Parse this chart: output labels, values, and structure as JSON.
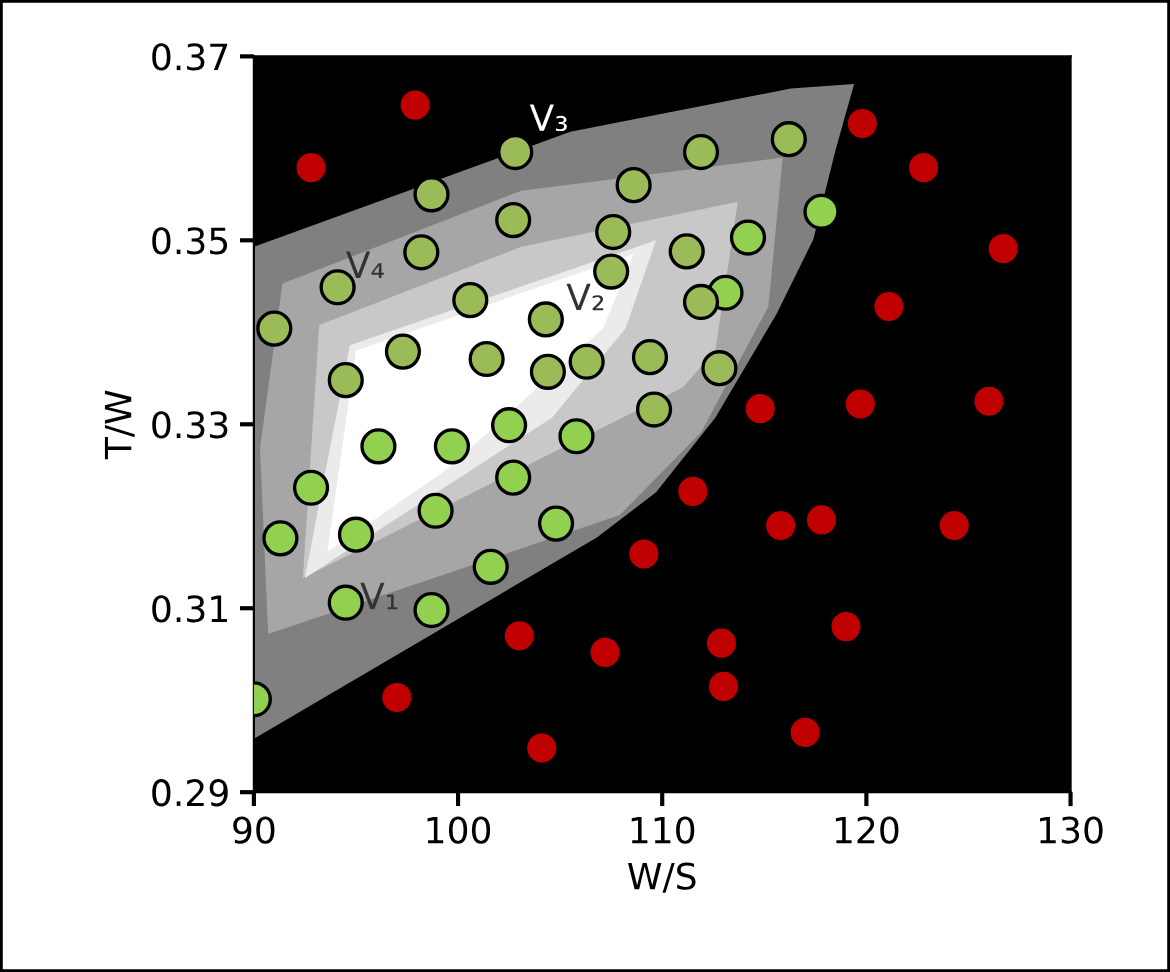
{
  "chart_data": {
    "type": "scatter",
    "xlabel": "W/S",
    "ylabel": "T/W",
    "xlim": [
      90,
      130
    ],
    "ylim": [
      0.29,
      0.37
    ],
    "xticks": [
      90,
      100,
      110,
      120,
      130
    ],
    "yticks": [
      0.29,
      0.31,
      0.33,
      0.35,
      0.37
    ],
    "grid": false,
    "legend": false,
    "series": [
      {
        "type": "area",
        "color": "#808080",
        "x": [
          90,
          105.5,
          116.3,
          119.4,
          118.5,
          117.4,
          115.6,
          112.6,
          109.7,
          106.8,
          90
        ],
        "values": [
          0.3493,
          0.3618,
          0.3665,
          0.367,
          0.3599,
          0.3501,
          0.342,
          0.3307,
          0.3226,
          0.3177,
          0.2958
        ]
      },
      {
        "type": "area",
        "color": "#a6a6a6",
        "x": [
          91.4,
          103.1,
          115.9,
          115.2,
          111.9,
          107.9,
          90.7,
          90.3
        ],
        "values": [
          0.3453,
          0.3554,
          0.359,
          0.3428,
          0.3291,
          0.3201,
          0.3072,
          0.3274
        ]
      },
      {
        "type": "area",
        "color": "#c8c8c8",
        "x": [
          93.2,
          103.1,
          113.7,
          112.6,
          111.0,
          92.4
        ],
        "values": [
          0.3408,
          0.3493,
          0.3542,
          0.338,
          0.334,
          0.3133
        ]
      },
      {
        "type": "area",
        "color": "#ebebeb",
        "x": [
          94.7,
          98.5,
          109.7,
          108.2,
          104.6,
          92.5
        ],
        "values": [
          0.3386,
          0.3415,
          0.35,
          0.3404,
          0.3307,
          0.3133
        ]
      },
      {
        "type": "area",
        "color": "#ffffff",
        "x": [
          95.0,
          108.6,
          107.1,
          99.4,
          93.6
        ],
        "values": [
          0.338,
          0.3485,
          0.3404,
          0.325,
          0.3161
        ]
      },
      {
        "color": "#92d050",
        "marker": "circle",
        "x": [
          90.0,
          91.3,
          92.8,
          94.5,
          95.0,
          96.1,
          98.9,
          98.7,
          99.7,
          101.6,
          102.5,
          102.7,
          104.8,
          105.8,
          113.1,
          114.2,
          117.8
        ],
        "values": [
          0.3001,
          0.3176,
          0.3231,
          0.3106,
          0.318,
          0.3276,
          0.3206,
          0.3098,
          0.3276,
          0.3145,
          0.3299,
          0.3242,
          0.3192,
          0.3287,
          0.3443,
          0.3503,
          0.3531
        ]
      },
      {
        "color": "#9bbb59",
        "marker": "circle",
        "x": [
          91.0,
          94.1,
          94.5,
          97.3,
          98.2,
          98.7,
          100.6,
          101.4,
          102.8,
          102.7,
          104.3,
          104.4,
          106.3,
          107.6,
          107.5,
          108.6,
          109.4,
          109.6,
          111.2,
          111.9,
          111.9,
          112.8,
          116.2
        ],
        "values": [
          0.3404,
          0.3449,
          0.3348,
          0.3379,
          0.3487,
          0.355,
          0.3435,
          0.3371,
          0.3596,
          0.3522,
          0.3414,
          0.3357,
          0.3368,
          0.3509,
          0.3466,
          0.356,
          0.3373,
          0.3316,
          0.3488,
          0.3596,
          0.3433,
          0.3361,
          0.361
        ]
      },
      {
        "color": "#c00000",
        "marker": "circle",
        "x": [
          97.9,
          92.8,
          119.8,
          122.8,
          126.7,
          121.1,
          114.8,
          119.7,
          126.0,
          111.5,
          115.8,
          117.8,
          124.3,
          109.1,
          103.0,
          107.2,
          112.9,
          119.0,
          97.0,
          113.0,
          117.0,
          104.1
        ],
        "values": [
          0.3647,
          0.3579,
          0.3627,
          0.3579,
          0.3491,
          0.3428,
          0.3317,
          0.3322,
          0.3325,
          0.3227,
          0.319,
          0.3196,
          0.319,
          0.3159,
          0.307,
          0.3052,
          0.3062,
          0.308,
          0.3003,
          0.3015,
          0.2965,
          0.2948
        ]
      }
    ],
    "annotations": [
      "V₃",
      "V₄",
      "V₂",
      "V₁"
    ]
  }
}
